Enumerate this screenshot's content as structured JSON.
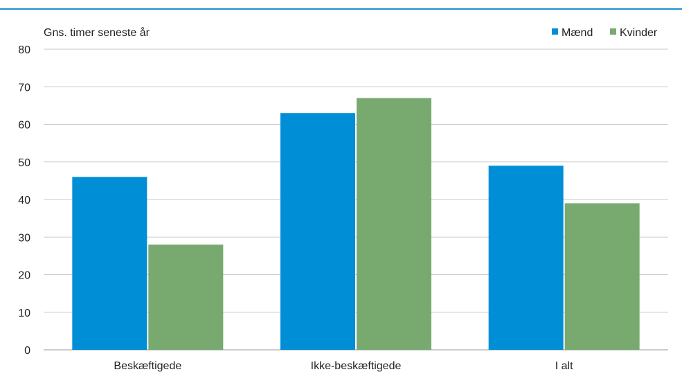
{
  "chart_data": {
    "type": "bar",
    "ylabel": "Gns. timer seneste  år",
    "categories": [
      "Beskæftigede",
      "Ikke-beskæftigede",
      "I alt"
    ],
    "series": [
      {
        "name": "Mænd",
        "values": [
          46,
          63,
          49
        ]
      },
      {
        "name": "Kvinder",
        "values": [
          28,
          67,
          39
        ]
      }
    ],
    "ylim": [
      0,
      80
    ],
    "yticks": [
      "0",
      "10",
      "20",
      "30",
      "40",
      "50",
      "60",
      "70",
      "80"
    ],
    "grid": true,
    "legend_position": "top-right",
    "colors": {
      "series": [
        "#008ed6",
        "#78aa6f"
      ],
      "grid": "#c8c8c8",
      "axis": "#9a9a9a",
      "top_rule": "#1a8fd0",
      "text": "#222222"
    }
  }
}
